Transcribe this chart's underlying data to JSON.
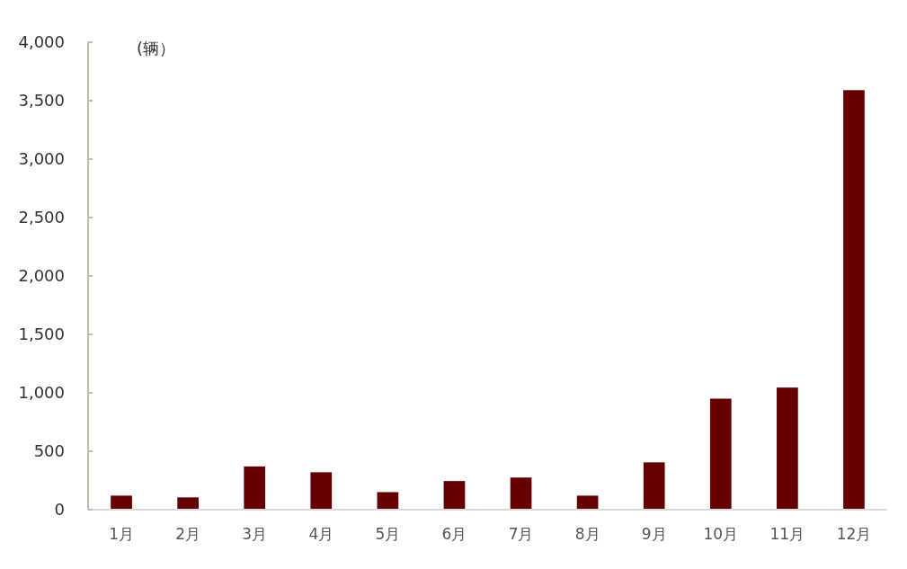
{
  "chart_data": {
    "type": "bar",
    "ylabel": "(辆）",
    "categories": [
      "1月",
      "2月",
      "3月",
      "4月",
      "5月",
      "6月",
      "7月",
      "8月",
      "9月",
      "10月",
      "11月",
      "12月"
    ],
    "values": [
      120,
      105,
      370,
      320,
      150,
      245,
      275,
      120,
      405,
      950,
      1045,
      3590
    ],
    "color": "#660000",
    "ylim": [
      0,
      4000
    ],
    "yticks": [
      {
        "value": 0,
        "label": "0"
      },
      {
        "value": 500,
        "label": "500"
      },
      {
        "value": 1000,
        "label": "1,000"
      },
      {
        "value": 1500,
        "label": "1,500"
      },
      {
        "value": 2000,
        "label": "2,000"
      },
      {
        "value": 2500,
        "label": "2,500"
      },
      {
        "value": 3000,
        "label": "3,000"
      },
      {
        "value": 3500,
        "label": "3,500"
      },
      {
        "value": 4000,
        "label": "4,000"
      }
    ],
    "grid": false
  }
}
